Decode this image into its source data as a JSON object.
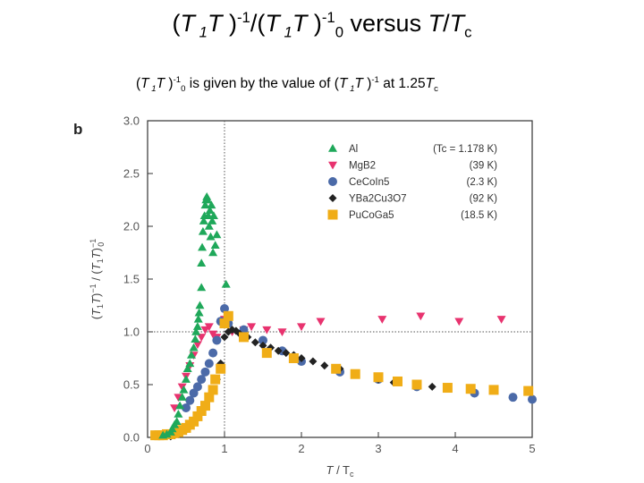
{
  "slide": {
    "title": {
      "pre": "(",
      "a": "T",
      "b": " 1",
      "c": "T",
      "d": " )",
      "e": "-1",
      "f": "/(",
      "g": "T",
      "h": " 1",
      "i": "T",
      "j": " )",
      "k": "-1",
      "l": "0",
      "m": " versus ",
      "n": "T",
      "o": "/",
      "p": "T",
      "q": "c"
    },
    "subtitle": {
      "pre": "(",
      "a": "T",
      "b": " 1",
      "c": "T",
      "d": " )",
      "e": "-1",
      "f": "0",
      "g": "  is given by the value of (",
      "h": "T",
      "i": " 1",
      "j": "T",
      "k": " )",
      "l": "-1",
      "m": "  at 1.25",
      "n": "T",
      "o": "c"
    }
  },
  "chart_data": {
    "type": "scatter",
    "panel_label": "b",
    "xlabel": "T / Tc",
    "ylabel": "(T1T)-1 / (T1T)-1 0",
    "xlim": [
      0,
      5
    ],
    "ylim": [
      0,
      3
    ],
    "x_ticks": [
      "0",
      "1",
      "2",
      "3",
      "4",
      "5"
    ],
    "y_ticks": [
      "0.0",
      "0.5",
      "1.0",
      "1.5",
      "2.0",
      "2.5",
      "3.0"
    ],
    "reference_lines": {
      "x": 1,
      "y": 1
    },
    "legend_position": "top-right",
    "series": [
      {
        "name": "Al",
        "tc": "(Tc = 1.178 K)",
        "marker": "triangle-up",
        "color": "#1fa85a",
        "x": [
          0.2,
          0.25,
          0.3,
          0.32,
          0.35,
          0.38,
          0.4,
          0.42,
          0.45,
          0.47,
          0.5,
          0.52,
          0.55,
          0.57,
          0.6,
          0.62,
          0.63,
          0.65,
          0.66,
          0.67,
          0.68,
          0.7,
          0.7,
          0.71,
          0.72,
          0.73,
          0.74,
          0.75,
          0.76,
          0.77,
          0.78,
          0.79,
          0.8,
          0.81,
          0.82,
          0.83,
          0.84,
          0.85,
          0.86,
          0.88,
          0.9,
          1.02
        ],
        "y": [
          0.02,
          0.03,
          0.05,
          0.08,
          0.12,
          0.15,
          0.22,
          0.3,
          0.38,
          0.45,
          0.55,
          0.65,
          0.7,
          0.78,
          0.85,
          0.93,
          1.0,
          1.05,
          1.12,
          1.18,
          1.25,
          1.42,
          1.65,
          1.8,
          1.95,
          2.05,
          2.1,
          2.2,
          2.25,
          2.28,
          2.25,
          2.1,
          2.0,
          2.15,
          1.9,
          2.2,
          2.05,
          1.75,
          2.1,
          1.82,
          1.92,
          1.45
        ]
      },
      {
        "name": "MgB2",
        "tc": "(39 K)",
        "marker": "triangle-down",
        "color": "#e8336f",
        "x": [
          0.35,
          0.4,
          0.45,
          0.5,
          0.55,
          0.6,
          0.65,
          0.7,
          0.75,
          0.8,
          0.85,
          0.9,
          1.0,
          1.1,
          1.25,
          1.35,
          1.55,
          1.75,
          2.0,
          2.25,
          3.05,
          3.55,
          4.05,
          4.6
        ],
        "y": [
          0.28,
          0.38,
          0.48,
          0.58,
          0.68,
          0.78,
          0.88,
          0.95,
          1.02,
          1.05,
          0.98,
          0.95,
          1.12,
          1.0,
          1.02,
          1.05,
          1.02,
          1.0,
          1.05,
          1.1,
          1.12,
          1.15,
          1.1,
          1.12
        ]
      },
      {
        "name": "CeCoIn5",
        "tc": "(2.3 K)",
        "marker": "circle",
        "color": "#4b6aa8",
        "x": [
          0.5,
          0.55,
          0.6,
          0.65,
          0.7,
          0.75,
          0.8,
          0.85,
          0.9,
          0.95,
          1.0,
          1.05,
          1.25,
          1.5,
          1.75,
          2.0,
          2.5,
          3.0,
          3.5,
          4.25,
          4.75,
          5.0
        ],
        "y": [
          0.28,
          0.35,
          0.42,
          0.48,
          0.55,
          0.62,
          0.7,
          0.8,
          0.92,
          1.1,
          1.22,
          1.08,
          1.02,
          0.92,
          0.82,
          0.72,
          0.62,
          0.55,
          0.48,
          0.42,
          0.38,
          0.36
        ]
      },
      {
        "name": "YBa2Cu3O7",
        "tc": "(92 K)",
        "marker": "diamond",
        "color": "#222222",
        "x": [
          0.3,
          0.35,
          0.4,
          0.45,
          0.5,
          0.55,
          0.6,
          0.65,
          0.7,
          0.75,
          0.8,
          0.85,
          0.9,
          0.95,
          1.0,
          1.05,
          1.1,
          1.15,
          1.2,
          1.3,
          1.4,
          1.5,
          1.6,
          1.7,
          1.8,
          1.9,
          2.0,
          2.15,
          2.3,
          2.5,
          2.7,
          3.0,
          3.2,
          3.5,
          3.7
        ],
        "y": [
          0.01,
          0.02,
          0.03,
          0.05,
          0.07,
          0.1,
          0.14,
          0.18,
          0.24,
          0.3,
          0.38,
          0.45,
          0.55,
          0.7,
          0.95,
          1.0,
          1.02,
          1.01,
          0.98,
          0.95,
          0.9,
          0.87,
          0.85,
          0.82,
          0.8,
          0.78,
          0.75,
          0.72,
          0.68,
          0.65,
          0.6,
          0.55,
          0.52,
          0.5,
          0.48
        ]
      },
      {
        "name": "PuCoGa5",
        "tc": "(18.5 K)",
        "marker": "square",
        "color": "#f0ad17",
        "x": [
          0.1,
          0.15,
          0.2,
          0.25,
          0.3,
          0.35,
          0.4,
          0.45,
          0.5,
          0.55,
          0.6,
          0.65,
          0.7,
          0.75,
          0.8,
          0.85,
          0.88,
          0.95,
          1.0,
          1.05,
          1.25,
          1.55,
          1.9,
          2.45,
          2.7,
          3.0,
          3.25,
          3.5,
          3.9,
          4.2,
          4.5,
          4.95
        ],
        "y": [
          0.02,
          0.02,
          0.02,
          0.03,
          0.03,
          0.04,
          0.05,
          0.07,
          0.09,
          0.12,
          0.15,
          0.2,
          0.25,
          0.3,
          0.38,
          0.45,
          0.55,
          0.65,
          1.08,
          1.15,
          0.95,
          0.8,
          0.75,
          0.65,
          0.6,
          0.57,
          0.53,
          0.5,
          0.47,
          0.46,
          0.45,
          0.44
        ]
      }
    ]
  }
}
